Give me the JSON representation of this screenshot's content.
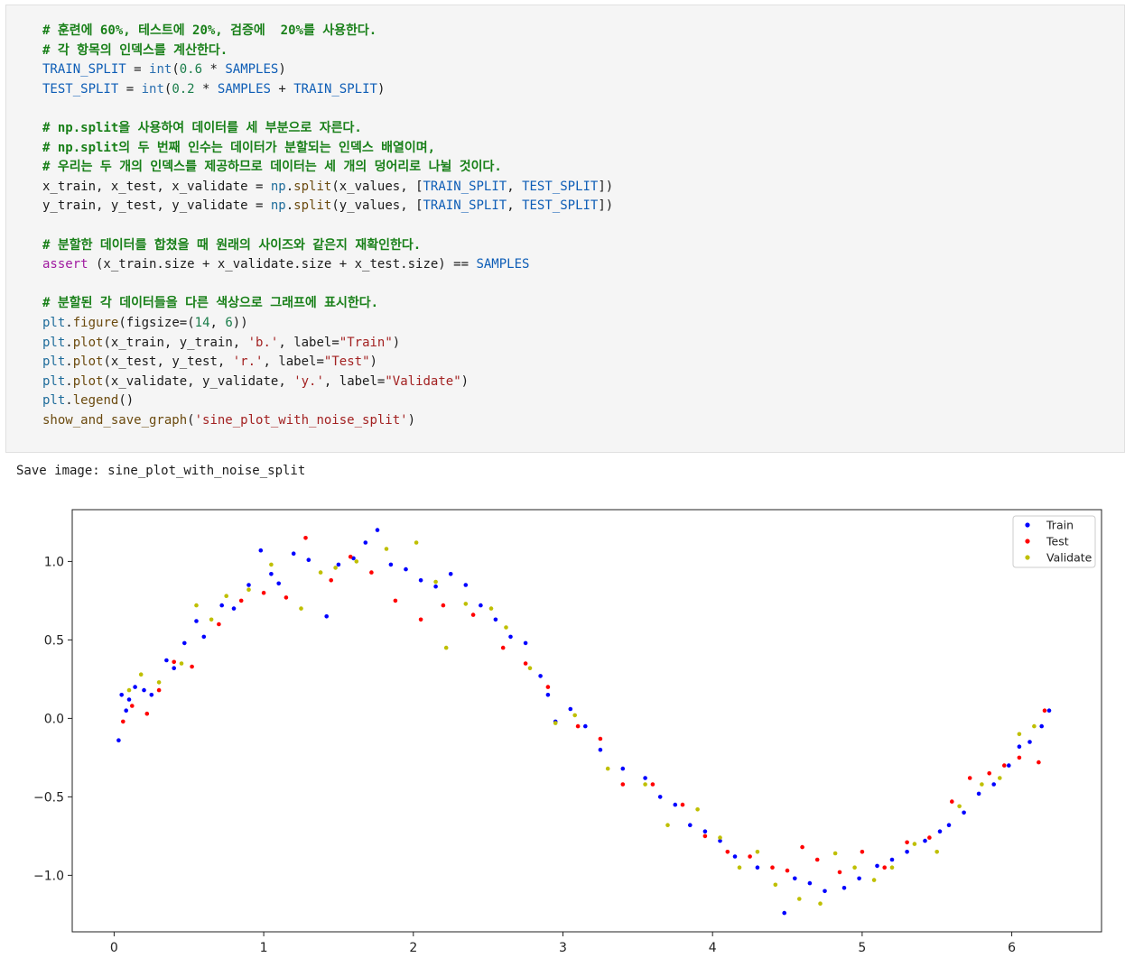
{
  "code": {
    "lines": [
      [
        {
          "t": "comment",
          "v": "# 훈련에 60%, 테스트에 20%, 검증에  20%를 사용한다."
        }
      ],
      [
        {
          "t": "comment",
          "v": "# 각 항목의 인덱스를 계산한다."
        }
      ],
      [
        {
          "t": "const",
          "v": "TRAIN_SPLIT"
        },
        {
          "t": "op",
          "v": " = "
        },
        {
          "t": "builtin",
          "v": "int"
        },
        {
          "t": "punct",
          "v": "("
        },
        {
          "t": "num",
          "v": "0.6"
        },
        {
          "t": "op",
          "v": " * "
        },
        {
          "t": "const",
          "v": "SAMPLES"
        },
        {
          "t": "punct",
          "v": ")"
        }
      ],
      [
        {
          "t": "const",
          "v": "TEST_SPLIT"
        },
        {
          "t": "op",
          "v": " = "
        },
        {
          "t": "builtin",
          "v": "int"
        },
        {
          "t": "punct",
          "v": "("
        },
        {
          "t": "num",
          "v": "0.2"
        },
        {
          "t": "op",
          "v": " * "
        },
        {
          "t": "const",
          "v": "SAMPLES"
        },
        {
          "t": "op",
          "v": " + "
        },
        {
          "t": "const",
          "v": "TRAIN_SPLIT"
        },
        {
          "t": "punct",
          "v": ")"
        }
      ],
      [],
      [
        {
          "t": "comment",
          "v": "# np.split을 사용하여 데이터를 세 부분으로 자른다."
        }
      ],
      [
        {
          "t": "comment",
          "v": "# np.split의 두 번째 인수는 데이터가 분할되는 인덱스 배열이며,"
        }
      ],
      [
        {
          "t": "comment",
          "v": "# 우리는 두 개의 인덱스를 제공하므로 데이터는 세 개의 덩어리로 나뉠 것이다."
        }
      ],
      [
        {
          "t": "var",
          "v": "x_train, x_test, x_validate"
        },
        {
          "t": "op",
          "v": " = "
        },
        {
          "t": "mod",
          "v": "np"
        },
        {
          "t": "punct",
          "v": "."
        },
        {
          "t": "func",
          "v": "split"
        },
        {
          "t": "punct",
          "v": "("
        },
        {
          "t": "var",
          "v": "x_values, "
        },
        {
          "t": "punct",
          "v": "["
        },
        {
          "t": "const",
          "v": "TRAIN_SPLIT"
        },
        {
          "t": "punct",
          "v": ", "
        },
        {
          "t": "const",
          "v": "TEST_SPLIT"
        },
        {
          "t": "punct",
          "v": "])"
        }
      ],
      [
        {
          "t": "var",
          "v": "y_train, y_test, y_validate"
        },
        {
          "t": "op",
          "v": " = "
        },
        {
          "t": "mod",
          "v": "np"
        },
        {
          "t": "punct",
          "v": "."
        },
        {
          "t": "func",
          "v": "split"
        },
        {
          "t": "punct",
          "v": "("
        },
        {
          "t": "var",
          "v": "y_values, "
        },
        {
          "t": "punct",
          "v": "["
        },
        {
          "t": "const",
          "v": "TRAIN_SPLIT"
        },
        {
          "t": "punct",
          "v": ", "
        },
        {
          "t": "const",
          "v": "TEST_SPLIT"
        },
        {
          "t": "punct",
          "v": "])"
        }
      ],
      [],
      [
        {
          "t": "comment",
          "v": "# 분할한 데이터를 합쳤을 때 원래의 사이즈와 같은지 재확인한다."
        }
      ],
      [
        {
          "t": "kw",
          "v": "assert"
        },
        {
          "t": "var",
          "v": " (x_train.size + x_validate.size + x_test.size) == "
        },
        {
          "t": "const",
          "v": "SAMPLES"
        }
      ],
      [],
      [
        {
          "t": "comment",
          "v": "# 분할된 각 데이터들을 다른 색상으로 그래프에 표시한다."
        }
      ],
      [
        {
          "t": "mod",
          "v": "plt"
        },
        {
          "t": "punct",
          "v": "."
        },
        {
          "t": "func",
          "v": "figure"
        },
        {
          "t": "punct",
          "v": "("
        },
        {
          "t": "arg",
          "v": "figsize"
        },
        {
          "t": "op",
          "v": "="
        },
        {
          "t": "punct",
          "v": "("
        },
        {
          "t": "num",
          "v": "14"
        },
        {
          "t": "punct",
          "v": ", "
        },
        {
          "t": "num",
          "v": "6"
        },
        {
          "t": "punct",
          "v": "))"
        }
      ],
      [
        {
          "t": "mod",
          "v": "plt"
        },
        {
          "t": "punct",
          "v": "."
        },
        {
          "t": "func",
          "v": "plot"
        },
        {
          "t": "punct",
          "v": "("
        },
        {
          "t": "var",
          "v": "x_train, y_train, "
        },
        {
          "t": "str",
          "v": "'b.'"
        },
        {
          "t": "punct",
          "v": ", "
        },
        {
          "t": "arg",
          "v": "label"
        },
        {
          "t": "op",
          "v": "="
        },
        {
          "t": "str",
          "v": "\"Train\""
        },
        {
          "t": "punct",
          "v": ")"
        }
      ],
      [
        {
          "t": "mod",
          "v": "plt"
        },
        {
          "t": "punct",
          "v": "."
        },
        {
          "t": "func",
          "v": "plot"
        },
        {
          "t": "punct",
          "v": "("
        },
        {
          "t": "var",
          "v": "x_test, y_test, "
        },
        {
          "t": "str",
          "v": "'r.'"
        },
        {
          "t": "punct",
          "v": ", "
        },
        {
          "t": "arg",
          "v": "label"
        },
        {
          "t": "op",
          "v": "="
        },
        {
          "t": "str",
          "v": "\"Test\""
        },
        {
          "t": "punct",
          "v": ")"
        }
      ],
      [
        {
          "t": "mod",
          "v": "plt"
        },
        {
          "t": "punct",
          "v": "."
        },
        {
          "t": "func",
          "v": "plot"
        },
        {
          "t": "punct",
          "v": "("
        },
        {
          "t": "var",
          "v": "x_validate, y_validate, "
        },
        {
          "t": "str",
          "v": "'y.'"
        },
        {
          "t": "punct",
          "v": ", "
        },
        {
          "t": "arg",
          "v": "label"
        },
        {
          "t": "op",
          "v": "="
        },
        {
          "t": "str",
          "v": "\"Validate\""
        },
        {
          "t": "punct",
          "v": ")"
        }
      ],
      [
        {
          "t": "mod",
          "v": "plt"
        },
        {
          "t": "punct",
          "v": "."
        },
        {
          "t": "func",
          "v": "legend"
        },
        {
          "t": "punct",
          "v": "()"
        }
      ],
      [
        {
          "t": "func",
          "v": "show_and_save_graph"
        },
        {
          "t": "punct",
          "v": "("
        },
        {
          "t": "str",
          "v": "'sine_plot_with_noise_split'"
        },
        {
          "t": "punct",
          "v": ")"
        }
      ]
    ]
  },
  "output": {
    "text": "Save image: sine_plot_with_noise_split"
  },
  "chart_data": {
    "type": "scatter",
    "xlim": [
      -0.28,
      6.6
    ],
    "ylim": [
      -1.36,
      1.33
    ],
    "x_ticks": [
      0,
      1,
      2,
      3,
      4,
      5,
      6
    ],
    "x_tick_labels": [
      "0",
      "1",
      "2",
      "3",
      "4",
      "5",
      "6"
    ],
    "y_ticks": [
      1.0,
      0.5,
      0.0,
      -0.5,
      -1.0
    ],
    "y_tick_labels": [
      "1.0",
      "0.5",
      "0.0",
      "−0.5",
      "−1.0"
    ],
    "grid": false,
    "legend_position": "top-right",
    "underlying_curve": "y = sin(x) with noise (std ~0.1), x in [0, 6.28]",
    "series": [
      {
        "name": "Train",
        "color": "#0000ff",
        "marker": ".",
        "points": [
          [
            0.03,
            -0.14
          ],
          [
            0.05,
            0.15
          ],
          [
            0.08,
            0.05
          ],
          [
            0.1,
            0.12
          ],
          [
            0.14,
            0.2
          ],
          [
            0.2,
            0.18
          ],
          [
            0.25,
            0.15
          ],
          [
            0.35,
            0.37
          ],
          [
            0.4,
            0.32
          ],
          [
            0.47,
            0.48
          ],
          [
            0.55,
            0.62
          ],
          [
            0.6,
            0.52
          ],
          [
            0.72,
            0.72
          ],
          [
            0.8,
            0.7
          ],
          [
            0.9,
            0.85
          ],
          [
            0.98,
            1.07
          ],
          [
            1.05,
            0.92
          ],
          [
            1.1,
            0.86
          ],
          [
            1.2,
            1.05
          ],
          [
            1.3,
            1.01
          ],
          [
            1.42,
            0.65
          ],
          [
            1.5,
            0.98
          ],
          [
            1.6,
            1.02
          ],
          [
            1.68,
            1.12
          ],
          [
            1.76,
            1.2
          ],
          [
            1.85,
            0.98
          ],
          [
            1.95,
            0.95
          ],
          [
            2.05,
            0.88
          ],
          [
            2.15,
            0.84
          ],
          [
            2.25,
            0.92
          ],
          [
            2.35,
            0.85
          ],
          [
            2.45,
            0.72
          ],
          [
            2.55,
            0.63
          ],
          [
            2.65,
            0.52
          ],
          [
            2.75,
            0.48
          ],
          [
            2.85,
            0.27
          ],
          [
            2.9,
            0.15
          ],
          [
            2.95,
            -0.02
          ],
          [
            3.05,
            0.06
          ],
          [
            3.15,
            -0.05
          ],
          [
            3.25,
            -0.2
          ],
          [
            3.4,
            -0.32
          ],
          [
            3.55,
            -0.38
          ],
          [
            3.65,
            -0.5
          ],
          [
            3.75,
            -0.55
          ],
          [
            3.85,
            -0.68
          ],
          [
            3.95,
            -0.72
          ],
          [
            4.05,
            -0.78
          ],
          [
            4.15,
            -0.88
          ],
          [
            4.3,
            -0.95
          ],
          [
            4.48,
            -1.24
          ],
          [
            4.55,
            -1.02
          ],
          [
            4.65,
            -1.05
          ],
          [
            4.75,
            -1.1
          ],
          [
            4.88,
            -1.08
          ],
          [
            4.98,
            -1.02
          ],
          [
            5.1,
            -0.94
          ],
          [
            5.2,
            -0.9
          ],
          [
            5.3,
            -0.85
          ],
          [
            5.42,
            -0.78
          ],
          [
            5.52,
            -0.72
          ],
          [
            5.58,
            -0.68
          ],
          [
            5.68,
            -0.6
          ],
          [
            5.78,
            -0.48
          ],
          [
            5.88,
            -0.42
          ],
          [
            5.98,
            -0.3
          ],
          [
            6.05,
            -0.18
          ],
          [
            6.12,
            -0.15
          ],
          [
            6.2,
            -0.05
          ],
          [
            6.25,
            0.05
          ]
        ]
      },
      {
        "name": "Test",
        "color": "#ff0000",
        "marker": ".",
        "points": [
          [
            0.06,
            -0.02
          ],
          [
            0.12,
            0.08
          ],
          [
            0.22,
            0.03
          ],
          [
            0.3,
            0.18
          ],
          [
            0.4,
            0.36
          ],
          [
            0.52,
            0.33
          ],
          [
            0.7,
            0.6
          ],
          [
            0.85,
            0.75
          ],
          [
            1.0,
            0.8
          ],
          [
            1.15,
            0.77
          ],
          [
            1.28,
            1.15
          ],
          [
            1.45,
            0.88
          ],
          [
            1.58,
            1.03
          ],
          [
            1.72,
            0.93
          ],
          [
            1.88,
            0.75
          ],
          [
            2.05,
            0.63
          ],
          [
            2.2,
            0.72
          ],
          [
            2.4,
            0.66
          ],
          [
            2.6,
            0.45
          ],
          [
            2.75,
            0.35
          ],
          [
            2.9,
            0.2
          ],
          [
            3.1,
            -0.05
          ],
          [
            3.25,
            -0.13
          ],
          [
            3.4,
            -0.42
          ],
          [
            3.6,
            -0.42
          ],
          [
            3.8,
            -0.55
          ],
          [
            3.95,
            -0.75
          ],
          [
            4.1,
            -0.85
          ],
          [
            4.25,
            -0.88
          ],
          [
            4.4,
            -0.95
          ],
          [
            4.5,
            -0.97
          ],
          [
            4.6,
            -0.82
          ],
          [
            4.7,
            -0.9
          ],
          [
            4.85,
            -0.98
          ],
          [
            5.0,
            -0.85
          ],
          [
            5.15,
            -0.95
          ],
          [
            5.3,
            -0.79
          ],
          [
            5.45,
            -0.76
          ],
          [
            5.6,
            -0.53
          ],
          [
            5.72,
            -0.38
          ],
          [
            5.85,
            -0.35
          ],
          [
            5.95,
            -0.3
          ],
          [
            6.05,
            -0.25
          ],
          [
            6.18,
            -0.28
          ],
          [
            6.22,
            0.05
          ]
        ]
      },
      {
        "name": "Validate",
        "color": "#bfbf00",
        "marker": ".",
        "points": [
          [
            0.1,
            0.18
          ],
          [
            0.18,
            0.28
          ],
          [
            0.3,
            0.23
          ],
          [
            0.45,
            0.35
          ],
          [
            0.55,
            0.72
          ],
          [
            0.65,
            0.63
          ],
          [
            0.75,
            0.78
          ],
          [
            0.9,
            0.82
          ],
          [
            1.05,
            0.98
          ],
          [
            1.25,
            0.7
          ],
          [
            1.38,
            0.93
          ],
          [
            1.48,
            0.96
          ],
          [
            1.62,
            1.0
          ],
          [
            1.82,
            1.08
          ],
          [
            2.02,
            1.12
          ],
          [
            2.15,
            0.87
          ],
          [
            2.22,
            0.45
          ],
          [
            2.35,
            0.73
          ],
          [
            2.52,
            0.7
          ],
          [
            2.62,
            0.58
          ],
          [
            2.78,
            0.32
          ],
          [
            2.95,
            -0.03
          ],
          [
            3.08,
            0.02
          ],
          [
            3.3,
            -0.32
          ],
          [
            3.55,
            -0.42
          ],
          [
            3.7,
            -0.68
          ],
          [
            3.9,
            -0.58
          ],
          [
            4.05,
            -0.76
          ],
          [
            4.18,
            -0.95
          ],
          [
            4.3,
            -0.85
          ],
          [
            4.42,
            -1.06
          ],
          [
            4.58,
            -1.15
          ],
          [
            4.72,
            -1.18
          ],
          [
            4.82,
            -0.86
          ],
          [
            4.95,
            -0.95
          ],
          [
            5.08,
            -1.03
          ],
          [
            5.2,
            -0.95
          ],
          [
            5.35,
            -0.8
          ],
          [
            5.5,
            -0.85
          ],
          [
            5.65,
            -0.56
          ],
          [
            5.8,
            -0.42
          ],
          [
            5.92,
            -0.38
          ],
          [
            6.05,
            -0.1
          ],
          [
            6.15,
            -0.05
          ]
        ]
      }
    ]
  }
}
